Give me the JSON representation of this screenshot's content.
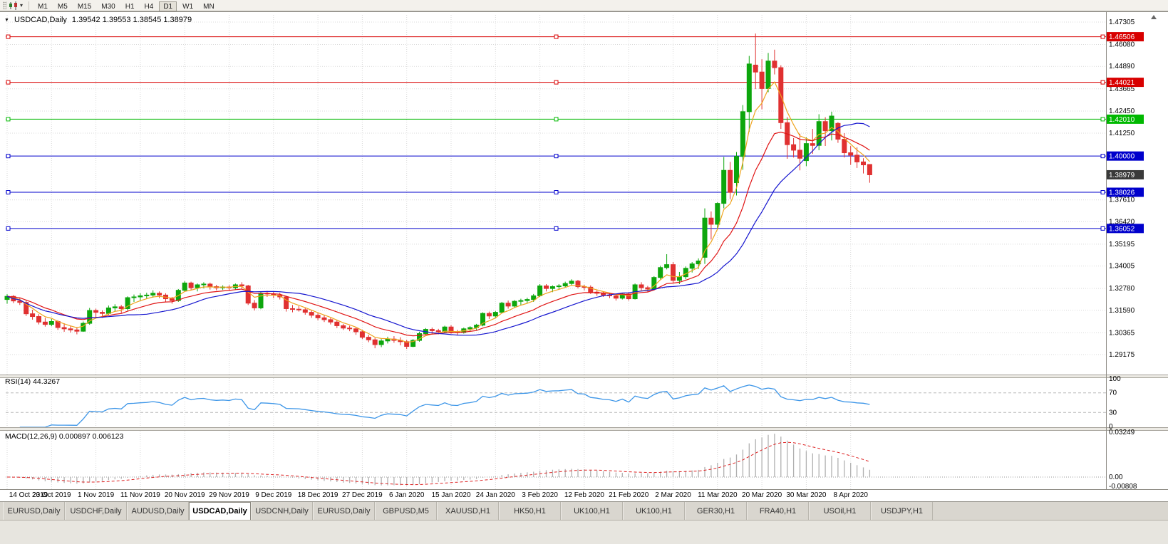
{
  "toolbar": {
    "timeframes": [
      "M1",
      "M5",
      "M15",
      "M30",
      "H1",
      "H4",
      "D1",
      "W1",
      "MN"
    ],
    "active_timeframe": "D1"
  },
  "chart": {
    "symbol_label": "USDCAD,Daily",
    "ohlc_label": "1.39542 1.39553 1.38545 1.38979"
  },
  "chart_data": {
    "type": "candlestick",
    "symbol": "USDCAD",
    "period": "Daily",
    "current_bar": {
      "open": "1.39542",
      "high": "1.39553",
      "low": "1.38545",
      "close": "1.38979"
    },
    "colors": {
      "background": "#ffffff",
      "bull": "#0da60d",
      "bear": "#e03131",
      "grid": "#d9d9d9"
    },
    "y_axis": {
      "ticks": [
        "1.47305",
        "1.46080",
        "1.44890",
        "1.43665",
        "1.42450",
        "1.41250",
        "1.37610",
        "1.36420",
        "1.35195",
        "1.34005",
        "1.32780",
        "1.31590",
        "1.30365",
        "1.29175"
      ]
    },
    "hlines": [
      {
        "label": "1.46506",
        "value": 1.46506,
        "color": "#d80000"
      },
      {
        "label": "1.44021",
        "value": 1.44021,
        "color": "#d80000"
      },
      {
        "label": "1.42010",
        "value": 1.4201,
        "color": "#00b800"
      },
      {
        "label": "1.40000",
        "value": 1.4,
        "color": "#0000cc"
      },
      {
        "label": "1.38026",
        "value": 1.38026,
        "color": "#0000cc"
      },
      {
        "label": "1.36052",
        "value": 1.36052,
        "color": "#0000cc"
      }
    ],
    "last_price": {
      "label": "1.38979",
      "value": 1.38979,
      "bg": "#3a3a3a"
    },
    "moving_averages": [
      {
        "method": "EMA",
        "period": 5,
        "color": "#efa41d"
      },
      {
        "method": "EMA",
        "period": 13,
        "color": "#e01515"
      },
      {
        "method": "SMA",
        "period": 20,
        "color": "#1515cf"
      }
    ],
    "indicators": {
      "rsi": {
        "label": "RSI(14) 44.3267",
        "period": 14,
        "value": "44.3267",
        "levels": [
          70,
          30
        ],
        "scale_labels": [
          "100",
          "70",
          "30",
          "0"
        ],
        "color": "#3d96e8"
      },
      "macd": {
        "label": "MACD(12,26,9) 0.000897 0.006123",
        "values": [
          "0.000897",
          "0.006123"
        ],
        "scale_labels": [
          "0.03249",
          "0.00",
          "-0.00808"
        ],
        "hist_color": "#b0b0b0",
        "signal_color": "#dd2222"
      }
    },
    "x_labels": [
      {
        "t": "14 Oct 2019",
        "i": 0
      },
      {
        "t": "23 Oct 2019",
        "i": 7
      },
      {
        "t": "1 Nov 2019",
        "i": 14
      },
      {
        "t": "11 Nov 2019",
        "i": 21
      },
      {
        "t": "20 Nov 2019",
        "i": 28
      },
      {
        "t": "29 Nov 2019",
        "i": 35
      },
      {
        "t": "9 Dec 2019",
        "i": 42
      },
      {
        "t": "18 Dec 2019",
        "i": 49
      },
      {
        "t": "27 Dec 2019",
        "i": 56
      },
      {
        "t": "6 Jan 2020",
        "i": 63
      },
      {
        "t": "15 Jan 2020",
        "i": 70
      },
      {
        "t": "24 Jan 2020",
        "i": 77
      },
      {
        "t": "3 Feb 2020",
        "i": 84
      },
      {
        "t": "12 Feb 2020",
        "i": 91
      },
      {
        "t": "21 Feb 2020",
        "i": 98
      },
      {
        "t": "2 Mar 2020",
        "i": 105
      },
      {
        "t": "11 Mar 2020",
        "i": 112
      },
      {
        "t": "20 Mar 2020",
        "i": 119
      },
      {
        "t": "30 Mar 2020",
        "i": 126
      },
      {
        "t": "8 Apr 2020",
        "i": 133
      }
    ],
    "candles": [
      [
        1.3218,
        1.3247,
        1.3195,
        1.3235
      ],
      [
        1.3235,
        1.3242,
        1.3198,
        1.321
      ],
      [
        1.321,
        1.3228,
        1.3188,
        1.3202
      ],
      [
        1.3202,
        1.3212,
        1.3128,
        1.314
      ],
      [
        1.314,
        1.3162,
        1.3108,
        1.3125
      ],
      [
        1.3125,
        1.3138,
        1.3082,
        1.3095
      ],
      [
        1.3095,
        1.3118,
        1.307,
        1.3082
      ],
      [
        1.3082,
        1.3112,
        1.3072,
        1.3098
      ],
      [
        1.3098,
        1.3105,
        1.3052,
        1.3065
      ],
      [
        1.3065,
        1.3088,
        1.3042,
        1.3058
      ],
      [
        1.3058,
        1.3075,
        1.3038,
        1.3052
      ],
      [
        1.3052,
        1.3068,
        1.3028,
        1.3045
      ],
      [
        1.3045,
        1.3098,
        1.3042,
        1.3088
      ],
      [
        1.3088,
        1.3172,
        1.308,
        1.3158
      ],
      [
        1.3158,
        1.3168,
        1.3122,
        1.3148
      ],
      [
        1.3148,
        1.3158,
        1.3118,
        1.3142
      ],
      [
        1.3142,
        1.3185,
        1.3135,
        1.3172
      ],
      [
        1.3172,
        1.3192,
        1.3152,
        1.3178
      ],
      [
        1.3178,
        1.3188,
        1.3145,
        1.3168
      ],
      [
        1.3168,
        1.3235,
        1.3158,
        1.3228
      ],
      [
        1.3228,
        1.3245,
        1.3205,
        1.3232
      ],
      [
        1.3232,
        1.3252,
        1.3212,
        1.3238
      ],
      [
        1.3238,
        1.3255,
        1.3222,
        1.3242
      ],
      [
        1.3242,
        1.3268,
        1.3228,
        1.3252
      ],
      [
        1.3252,
        1.3262,
        1.3225,
        1.3242
      ],
      [
        1.3242,
        1.3252,
        1.3205,
        1.3222
      ],
      [
        1.3222,
        1.3232,
        1.3195,
        1.3212
      ],
      [
        1.3212,
        1.3275,
        1.3205,
        1.3268
      ],
      [
        1.3268,
        1.3318,
        1.3262,
        1.3308
      ],
      [
        1.3308,
        1.3315,
        1.3268,
        1.3282
      ],
      [
        1.3282,
        1.3305,
        1.3262,
        1.3298
      ],
      [
        1.3298,
        1.3312,
        1.3278,
        1.3302
      ],
      [
        1.3302,
        1.331,
        1.3272,
        1.3288
      ],
      [
        1.3288,
        1.3298,
        1.3268,
        1.3282
      ],
      [
        1.3282,
        1.3295,
        1.327,
        1.3286
      ],
      [
        1.3286,
        1.3296,
        1.3268,
        1.3282
      ],
      [
        1.3282,
        1.3305,
        1.3272,
        1.3298
      ],
      [
        1.3298,
        1.3312,
        1.3278,
        1.3292
      ],
      [
        1.3292,
        1.3298,
        1.3188,
        1.3198
      ],
      [
        1.3198,
        1.3215,
        1.3158,
        1.3172
      ],
      [
        1.3172,
        1.3262,
        1.3165,
        1.3252
      ],
      [
        1.3252,
        1.3265,
        1.3232,
        1.3248
      ],
      [
        1.3248,
        1.3262,
        1.3225,
        1.3242
      ],
      [
        1.3242,
        1.3255,
        1.3218,
        1.3232
      ],
      [
        1.3232,
        1.3238,
        1.3152,
        1.3168
      ],
      [
        1.3168,
        1.3188,
        1.3148,
        1.3165
      ],
      [
        1.3165,
        1.3182,
        1.3152,
        1.3162
      ],
      [
        1.3162,
        1.3172,
        1.3135,
        1.3148
      ],
      [
        1.3148,
        1.3158,
        1.3118,
        1.3132
      ],
      [
        1.3132,
        1.3145,
        1.3105,
        1.3118
      ],
      [
        1.3118,
        1.3132,
        1.3095,
        1.3108
      ],
      [
        1.3108,
        1.3118,
        1.3082,
        1.3095
      ],
      [
        1.3095,
        1.3108,
        1.3062,
        1.3075
      ],
      [
        1.3075,
        1.3085,
        1.3052,
        1.3062
      ],
      [
        1.3062,
        1.3075,
        1.3045,
        1.3058
      ],
      [
        1.3058,
        1.3068,
        1.3025,
        1.3042
      ],
      [
        1.3042,
        1.3052,
        1.3002,
        1.3012
      ],
      [
        1.3012,
        1.3025,
        1.2985,
        1.2998
      ],
      [
        1.2998,
        1.3008,
        1.2952,
        1.2972
      ],
      [
        1.2972,
        1.3002,
        1.2958,
        1.2992
      ],
      [
        1.2992,
        1.3015,
        1.2978,
        1.3002
      ],
      [
        1.3002,
        1.3018,
        1.2982,
        1.2995
      ],
      [
        1.2995,
        1.3012,
        1.2968,
        1.2988
      ],
      [
        1.2988,
        1.2998,
        1.2948,
        1.2962
      ],
      [
        1.2962,
        1.3002,
        1.2958,
        1.2995
      ],
      [
        1.2995,
        1.3042,
        1.2988,
        1.3032
      ],
      [
        1.3032,
        1.3062,
        1.3025,
        1.3055
      ],
      [
        1.3055,
        1.3065,
        1.3032,
        1.3048
      ],
      [
        1.3048,
        1.3058,
        1.3028,
        1.3042
      ],
      [
        1.3042,
        1.3075,
        1.3035,
        1.3068
      ],
      [
        1.3068,
        1.3078,
        1.3032,
        1.3042
      ],
      [
        1.3042,
        1.3052,
        1.3022,
        1.3038
      ],
      [
        1.3038,
        1.3065,
        1.3032,
        1.3058
      ],
      [
        1.3058,
        1.3072,
        1.3045,
        1.3065
      ],
      [
        1.3065,
        1.3085,
        1.3052,
        1.3078
      ],
      [
        1.3078,
        1.3148,
        1.3072,
        1.3142
      ],
      [
        1.3142,
        1.3152,
        1.3112,
        1.3128
      ],
      [
        1.3128,
        1.3155,
        1.3118,
        1.3148
      ],
      [
        1.3148,
        1.3205,
        1.3142,
        1.3198
      ],
      [
        1.3198,
        1.3212,
        1.3168,
        1.3182
      ],
      [
        1.3182,
        1.3215,
        1.3172,
        1.3208
      ],
      [
        1.3208,
        1.3222,
        1.3188,
        1.3212
      ],
      [
        1.3212,
        1.3228,
        1.3198,
        1.3218
      ],
      [
        1.3218,
        1.3248,
        1.3205,
        1.3238
      ],
      [
        1.3238,
        1.3302,
        1.3232,
        1.3292
      ],
      [
        1.3292,
        1.3302,
        1.3262,
        1.3278
      ],
      [
        1.3278,
        1.3295,
        1.3258,
        1.3288
      ],
      [
        1.3288,
        1.3302,
        1.3272,
        1.3292
      ],
      [
        1.3292,
        1.3315,
        1.3282,
        1.3305
      ],
      [
        1.3305,
        1.3328,
        1.3295,
        1.3318
      ],
      [
        1.3318,
        1.3325,
        1.3278,
        1.3288
      ],
      [
        1.3288,
        1.3298,
        1.3268,
        1.3285
      ],
      [
        1.3285,
        1.3295,
        1.3248,
        1.3258
      ],
      [
        1.3258,
        1.3268,
        1.3238,
        1.3252
      ],
      [
        1.3252,
        1.3262,
        1.3232,
        1.3242
      ],
      [
        1.3242,
        1.3252,
        1.3225,
        1.3238
      ],
      [
        1.3238,
        1.3248,
        1.3212,
        1.3225
      ],
      [
        1.3225,
        1.3255,
        1.3218,
        1.3248
      ],
      [
        1.3248,
        1.3258,
        1.3212,
        1.3222
      ],
      [
        1.3222,
        1.3305,
        1.3218,
        1.3298
      ],
      [
        1.3298,
        1.3312,
        1.3268,
        1.3282
      ],
      [
        1.3282,
        1.3292,
        1.3258,
        1.3275
      ],
      [
        1.3275,
        1.3345,
        1.3268,
        1.3338
      ],
      [
        1.3338,
        1.3402,
        1.3328,
        1.3392
      ],
      [
        1.3392,
        1.3465,
        1.3382,
        1.3408
      ],
      [
        1.3408,
        1.3422,
        1.3305,
        1.3322
      ],
      [
        1.3322,
        1.3368,
        1.3302,
        1.3342
      ],
      [
        1.3342,
        1.3398,
        1.3328,
        1.3388
      ],
      [
        1.3388,
        1.3422,
        1.3365,
        1.3412
      ],
      [
        1.3412,
        1.3442,
        1.3385,
        1.3428
      ],
      [
        1.3448,
        1.3715,
        1.3412,
        1.3662
      ],
      [
        1.3662,
        1.3698,
        1.3545,
        1.3628
      ],
      [
        1.3628,
        1.3748,
        1.3602,
        1.3742
      ],
      [
        1.3742,
        1.3995,
        1.3715,
        1.3922
      ],
      [
        1.3922,
        1.3968,
        1.3765,
        1.3802
      ],
      [
        1.3855,
        1.4022,
        1.3785,
        1.3998
      ],
      [
        1.3998,
        1.4278,
        1.3925,
        1.4242
      ],
      [
        1.4242,
        1.4546,
        1.4132,
        1.4502
      ],
      [
        1.4496,
        1.4668,
        1.4365,
        1.4458
      ],
      [
        1.4458,
        1.4528,
        1.4255,
        1.4368
      ],
      [
        1.4368,
        1.4562,
        1.4348,
        1.4518
      ],
      [
        1.4518,
        1.458,
        1.4445,
        1.4482
      ],
      [
        1.4482,
        1.4495,
        1.4148,
        1.4182
      ],
      [
        1.4182,
        1.4212,
        1.3985,
        1.4062
      ],
      [
        1.4062,
        1.4098,
        1.3992,
        1.4032
      ],
      [
        1.4032,
        1.4122,
        1.3922,
        1.3988
      ],
      [
        1.3975,
        1.4102,
        1.3945,
        1.4068
      ],
      [
        1.4068,
        1.4148,
        1.4012,
        1.4058
      ],
      [
        1.4058,
        1.4228,
        1.4032,
        1.4188
      ],
      [
        1.4188,
        1.4212,
        1.4055,
        1.4138
      ],
      [
        1.4138,
        1.4242,
        1.4085,
        1.4218
      ],
      [
        1.4178,
        1.4185,
        1.4072,
        1.4092
      ],
      [
        1.4092,
        1.4125,
        1.3992,
        1.4018
      ],
      [
        1.4018,
        1.4055,
        1.3952,
        1.4005
      ],
      [
        1.4005,
        1.4048,
        1.3935,
        1.3968
      ],
      [
        1.3968,
        1.3988,
        1.3905,
        1.3952
      ],
      [
        1.39542,
        1.39553,
        1.38545,
        1.38979
      ]
    ]
  },
  "tabs": [
    {
      "label": "EURUSD,Daily",
      "active": false
    },
    {
      "label": "USDCHF,Daily",
      "active": false
    },
    {
      "label": "AUDUSD,Daily",
      "active": false
    },
    {
      "label": "USDCAD,Daily",
      "active": true
    },
    {
      "label": "USDCNH,Daily",
      "active": false
    },
    {
      "label": "EURUSD,Daily",
      "active": false
    },
    {
      "label": "GBPUSD,M5",
      "active": false
    },
    {
      "label": "XAUUSD,H1",
      "active": false
    },
    {
      "label": "HK50,H1",
      "active": false
    },
    {
      "label": "UK100,H1",
      "active": false
    },
    {
      "label": "UK100,H1",
      "active": false
    },
    {
      "label": "GER30,H1",
      "active": false
    },
    {
      "label": "FRA40,H1",
      "active": false
    },
    {
      "label": "USOil,H1",
      "active": false
    },
    {
      "label": "USDJPY,H1",
      "active": false
    }
  ]
}
